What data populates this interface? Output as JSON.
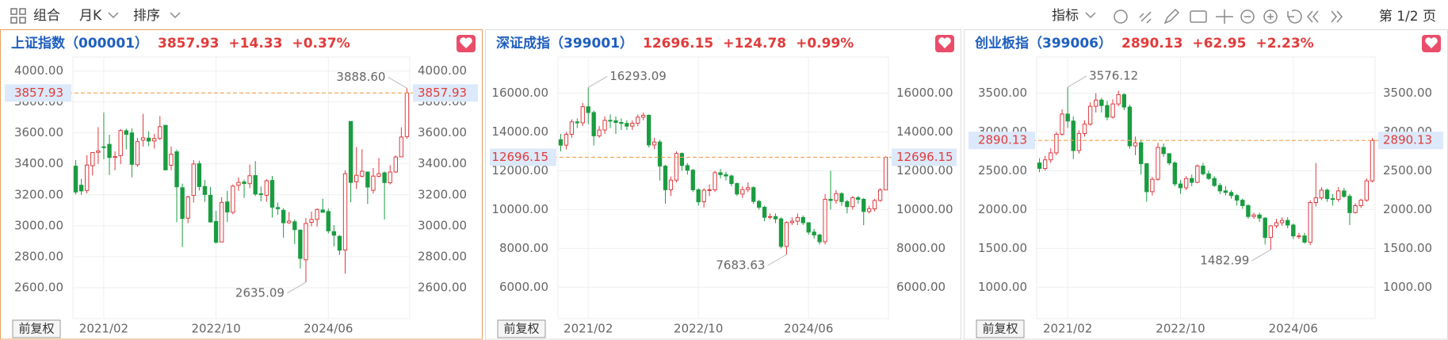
{
  "toolbar": {
    "group": "组合",
    "period": "月K",
    "sort": "排序",
    "indicator": "指标",
    "page": "第 1/2 页"
  },
  "chart_data": [
    {
      "type": "candlestick",
      "title": "上证指数（000001）",
      "price": 3857.93,
      "change": "+14.33",
      "change_pct": "+0.37%",
      "adjust": "前复权",
      "categories": [
        null,
        null,
        null,
        null,
        null,
        "2021/02",
        null,
        null,
        null,
        null,
        null,
        null,
        null,
        null,
        null,
        null,
        null,
        null,
        null,
        null,
        null,
        null,
        null,
        null,
        null,
        "2022/10",
        null,
        null,
        null,
        null,
        null,
        null,
        null,
        null,
        null,
        null,
        null,
        null,
        null,
        null,
        null,
        null,
        null,
        null,
        null,
        "2024/06",
        null,
        null,
        null,
        null,
        null,
        null,
        null,
        null,
        null,
        null,
        null,
        null,
        null,
        null
      ],
      "open": [
        3385,
        3262,
        3228,
        3388,
        3474,
        3510,
        3526,
        3441,
        3453,
        3614,
        3600,
        3394,
        3553,
        3566,
        3548,
        3564,
        3649,
        3391,
        3478,
        3246,
        3049,
        3196,
        3401,
        3254,
        3197,
        3028,
        2895,
        3154,
        3087,
        3262,
        3283,
        3272,
        3324,
        3206,
        3197,
        3293,
        3118,
        3100,
        3019,
        3026,
        2972,
        2780,
        3022,
        3041,
        3102,
        3092,
        2962,
        2932,
        2843,
        3674,
        3284,
        3320,
        3347,
        3229,
        3320,
        3342,
        3278,
        3347,
        3445,
        3576
      ],
      "high": [
        3425,
        3303,
        3456,
        3474,
        3637,
        3732,
        3588,
        3481,
        3625,
        3628,
        3629,
        3567,
        3723,
        3610,
        3593,
        3709,
        3651,
        3512,
        3492,
        3272,
        3194,
        3424,
        3421,
        3296,
        3251,
        3096,
        3185,
        3226,
        3267,
        3313,
        3298,
        3395,
        3418,
        3254,
        3301,
        3322,
        3149,
        3113,
        3088,
        3041,
        2976,
        3050,
        3091,
        3112,
        3175,
        3111,
        3004,
        2940,
        3358,
        3674,
        3509,
        3494,
        3351,
        3373,
        3439,
        3351,
        3391,
        3455,
        3636,
        3888.6
      ],
      "low": [
        3202,
        3199,
        3209,
        3325,
        3400,
        3430,
        3328,
        3358,
        3398,
        3494,
        3313,
        3381,
        3512,
        3515,
        3498,
        3553,
        3358,
        3358,
        3023,
        2863,
        3016,
        3150,
        3227,
        3155,
        3021,
        2885,
        2897,
        3024,
        3074,
        3226,
        3180,
        3243,
        3192,
        3158,
        3155,
        3053,
        3070,
        2923,
        3012,
        2882,
        2724,
        2635.09,
        2996,
        2995,
        3085,
        2950,
        2865,
        2812,
        2690,
        3152,
        3237,
        3313,
        3141,
        3208,
        3312,
        3040,
        3267,
        3342,
        3446,
        3561
      ],
      "close": [
        3218,
        3225,
        3392,
        3473,
        3483,
        3509,
        3441,
        3447,
        3615,
        3591,
        3397,
        3544,
        3568,
        3547,
        3564,
        3640,
        3361,
        3462,
        3252,
        3047,
        3186,
        3399,
        3253,
        3202,
        3024,
        2893,
        3151,
        3089,
        3256,
        3280,
        3273,
        3323,
        3205,
        3202,
        3291,
        3120,
        3110,
        3019,
        3030,
        2975,
        2789,
        3015,
        3041,
        3105,
        3087,
        2967,
        2939,
        2842,
        3336,
        3280,
        3326,
        3352,
        3250,
        3321,
        3336,
        3279,
        3347,
        3444,
        3573,
        3857.93
      ],
      "high_note": {
        "value": 3888.6,
        "label": "3888.60"
      },
      "low_note": 2635.09,
      "ylim": [
        2400,
        4090
      ],
      "yticks": [
        {
          "value": 2600,
          "label": "2600.00"
        },
        {
          "value": 2800,
          "label": "2800.00"
        },
        {
          "value": 3000,
          "label": "3000.00"
        },
        {
          "value": 3200,
          "label": "3200.00"
        },
        {
          "value": 3400,
          "label": "3400.00"
        },
        {
          "value": 3600,
          "label": "3600.00"
        },
        {
          "value": 3800,
          "label": "3800.00"
        },
        {
          "value": 4000,
          "label": "4000.00"
        }
      ],
      "up_color": "#e0393e",
      "down_color": "#1a9c40",
      "grid": true,
      "selected": true
    },
    {
      "type": "candlestick",
      "title": "深证成指（399001）",
      "price": 12696.15,
      "change": "+124.78",
      "change_pct": "+0.99%",
      "adjust": "前复权",
      "categories": [
        null,
        null,
        null,
        null,
        null,
        "2021/02",
        null,
        null,
        null,
        null,
        null,
        null,
        null,
        null,
        null,
        null,
        null,
        null,
        null,
        null,
        null,
        null,
        null,
        null,
        null,
        "2022/10",
        null,
        null,
        null,
        null,
        null,
        null,
        null,
        null,
        null,
        null,
        null,
        null,
        null,
        null,
        null,
        null,
        null,
        null,
        null,
        "2024/06",
        null,
        null,
        null,
        null,
        null,
        null,
        null,
        null,
        null,
        null,
        null,
        null,
        null,
        null
      ],
      "open": [
        13600,
        13320,
        13880,
        14520,
        14470,
        15300,
        15000,
        13800,
        14100,
        14600,
        14580,
        14490,
        14440,
        14300,
        14450,
        14760,
        14860,
        13330,
        13480,
        12240,
        11020,
        11520,
        12890,
        12270,
        12030,
        11020,
        10400,
        11000,
        11020,
        11900,
        11800,
        11730,
        11340,
        10800,
        11030,
        11130,
        10420,
        10120,
        9600,
        9640,
        9520,
        8100,
        9330,
        9400,
        9590,
        9320,
        8840,
        8690,
        8340,
        10530,
        10470,
        10820,
        10410,
        10150,
        10610,
        10530,
        9900,
        10040,
        10470,
        11010
      ],
      "high": [
        13900,
        14000,
        14650,
        14700,
        15500,
        16293.09,
        15100,
        14300,
        14800,
        14900,
        14800,
        14700,
        14600,
        14600,
        14900,
        15000,
        14900,
        13700,
        13600,
        12300,
        11700,
        13000,
        12950,
        12400,
        12100,
        11100,
        11100,
        11300,
        12000,
        12100,
        11950,
        11800,
        11400,
        11200,
        11400,
        11200,
        10500,
        10200,
        9800,
        9800,
        9600,
        9400,
        9600,
        9800,
        9700,
        9350,
        9000,
        8750,
        10800,
        12000,
        11000,
        10900,
        10500,
        10700,
        10700,
        10600,
        10200,
        10550,
        11100,
        12750
      ],
      "low": [
        13000,
        13100,
        13700,
        14200,
        14300,
        14400,
        13300,
        13700,
        13900,
        14200,
        13900,
        14100,
        14100,
        14100,
        14300,
        14600,
        13200,
        13100,
        11500,
        10300,
        10700,
        11400,
        12000,
        11800,
        10900,
        10200,
        10100,
        10700,
        10900,
        11600,
        11500,
        11200,
        10700,
        10600,
        10900,
        10300,
        10000,
        9400,
        9500,
        9300,
        8000,
        7683.63,
        9200,
        9200,
        9200,
        8700,
        8500,
        8200,
        8200,
        10000,
        10300,
        10200,
        9800,
        10000,
        10300,
        9200,
        9800,
        9900,
        10400,
        11000
      ],
      "close": [
        13320,
        13880,
        14520,
        14470,
        15300,
        15000,
        13800,
        14100,
        14600,
        14580,
        14490,
        14440,
        14300,
        14450,
        14760,
        14860,
        13330,
        13480,
        12240,
        11020,
        11520,
        12890,
        12270,
        12030,
        11020,
        10400,
        11000,
        11020,
        11900,
        11800,
        11730,
        11340,
        10800,
        11030,
        11130,
        10420,
        10120,
        9600,
        9640,
        9520,
        8100,
        9330,
        9400,
        9590,
        9320,
        8840,
        8690,
        8340,
        10530,
        10470,
        10820,
        10410,
        10150,
        10610,
        10530,
        9900,
        10040,
        10470,
        11010,
        12696.15
      ],
      "high_note": 16293.09,
      "low_note": 7683.63,
      "ylim": [
        4380,
        17860
      ],
      "yticks": [
        {
          "value": 6000,
          "label": "6000.00"
        },
        {
          "value": 8000,
          "label": "8000.00"
        },
        {
          "value": 10000,
          "label": "10000.00"
        },
        {
          "value": 12000,
          "label": "12000.00"
        },
        {
          "value": 14000,
          "label": "14000.00"
        },
        {
          "value": 16000,
          "label": "16000.00"
        }
      ],
      "up_color": "#e0393e",
      "down_color": "#1a9c40",
      "grid": true,
      "selected": false
    },
    {
      "type": "candlestick",
      "title": "创业板指（399006）",
      "price": 2890.13,
      "change": "+62.95",
      "change_pct": "+2.23%",
      "adjust": "前复权",
      "categories": [
        null,
        null,
        null,
        null,
        null,
        "2021/02",
        null,
        null,
        null,
        null,
        null,
        null,
        null,
        null,
        null,
        null,
        null,
        null,
        null,
        null,
        null,
        null,
        null,
        null,
        null,
        "2022/10",
        null,
        null,
        null,
        null,
        null,
        null,
        null,
        null,
        null,
        null,
        null,
        null,
        null,
        null,
        null,
        null,
        null,
        null,
        null,
        "2024/06",
        null,
        null,
        null,
        null,
        null,
        null,
        null,
        null,
        null,
        null,
        null,
        null,
        null,
        null
      ],
      "open": [
        2600,
        2530,
        2640,
        2730,
        2970,
        3230,
        3140,
        2760,
        2980,
        3100,
        3330,
        3410,
        3340,
        3190,
        3360,
        3480,
        3320,
        2820,
        2860,
        2590,
        2230,
        2390,
        2800,
        2720,
        2600,
        2330,
        2280,
        2400,
        2350,
        2560,
        2460,
        2400,
        2310,
        2240,
        2220,
        2180,
        2120,
        2050,
        1910,
        1930,
        1890,
        1640,
        1790,
        1830,
        1860,
        1800,
        1660,
        1660,
        1580,
        2090,
        2150,
        2250,
        2140,
        2130,
        2240,
        2170,
        1960,
        2050,
        2120,
        2370
      ],
      "high": [
        2660,
        2690,
        2790,
        3000,
        3290,
        3576.12,
        3200,
        3020,
        3150,
        3380,
        3500,
        3440,
        3400,
        3420,
        3530,
        3500,
        3350,
        2940,
        2900,
        2600,
        2420,
        2860,
        2850,
        2720,
        2620,
        2380,
        2430,
        2450,
        2580,
        2600,
        2500,
        2430,
        2340,
        2300,
        2250,
        2200,
        2140,
        2070,
        1960,
        1960,
        1900,
        1800,
        1880,
        1900,
        1900,
        1820,
        1700,
        1700,
        2120,
        2600,
        2290,
        2270,
        2200,
        2290,
        2280,
        2200,
        2080,
        2140,
        2400,
        2920
      ],
      "low": [
        2480,
        2500,
        2600,
        2700,
        2950,
        3050,
        2650,
        2720,
        2940,
        3080,
        3250,
        3250,
        3150,
        3170,
        3330,
        3280,
        2780,
        2700,
        2450,
        2100,
        2180,
        2370,
        2680,
        2570,
        2300,
        2200,
        2250,
        2300,
        2340,
        2440,
        2380,
        2290,
        2200,
        2180,
        2140,
        2050,
        2010,
        1880,
        1880,
        1840,
        1550,
        1482.99,
        1760,
        1790,
        1760,
        1620,
        1620,
        1560,
        1540,
        2040,
        2120,
        2100,
        2050,
        2100,
        2150,
        1800,
        1950,
        2020,
        2100,
        2350
      ],
      "close": [
        2530,
        2640,
        2730,
        2970,
        3230,
        3140,
        2760,
        2980,
        3100,
        3330,
        3410,
        3340,
        3190,
        3360,
        3480,
        3320,
        2820,
        2860,
        2590,
        2230,
        2390,
        2800,
        2720,
        2600,
        2330,
        2280,
        2400,
        2350,
        2560,
        2460,
        2400,
        2310,
        2240,
        2220,
        2180,
        2120,
        2050,
        1910,
        1930,
        1890,
        1640,
        1790,
        1830,
        1860,
        1800,
        1660,
        1660,
        1580,
        2090,
        2150,
        2250,
        2140,
        2130,
        2240,
        2170,
        1960,
        2050,
        2120,
        2370,
        2890.13
      ],
      "high_note": 3576.12,
      "low_note": 1482.99,
      "ylim": [
        595,
        3964
      ],
      "yticks": [
        {
          "value": 1000,
          "label": "1000.00"
        },
        {
          "value": 1500,
          "label": "1500.00"
        },
        {
          "value": 2000,
          "label": "2000.00"
        },
        {
          "value": 2500,
          "label": "2500.00"
        },
        {
          "value": 3000,
          "label": "3000.00"
        },
        {
          "value": 3500,
          "label": "3500.00"
        }
      ],
      "up_color": "#e0393e",
      "down_color": "#1a9c40",
      "grid": true,
      "selected": false
    }
  ]
}
